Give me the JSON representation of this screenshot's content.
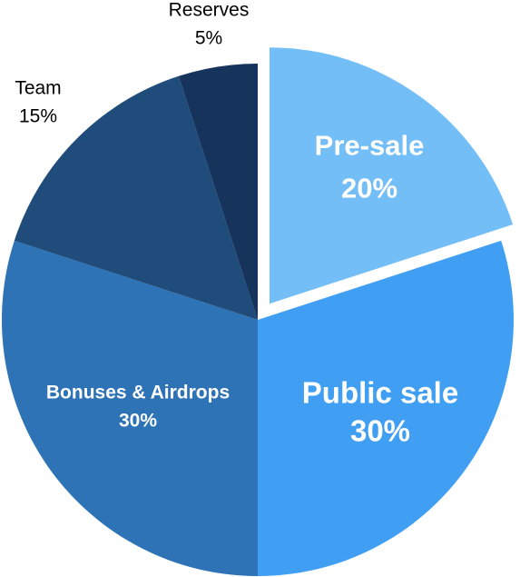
{
  "chart_data": {
    "type": "pie",
    "slices": [
      {
        "label": "Pre-sale",
        "value": 20,
        "value_label": "20%",
        "color": "#74bef8",
        "exploded": true,
        "label_style": "inside-large"
      },
      {
        "label": "Public sale",
        "value": 30,
        "value_label": "30%",
        "color": "#419ff3",
        "exploded": false,
        "label_style": "inside-xlarge"
      },
      {
        "label": "Bonuses & Airdrops",
        "value": 30,
        "value_label": "30%",
        "color": "#2d73b5",
        "exploded": false,
        "label_style": "inside-medium"
      },
      {
        "label": "Team",
        "value": 15,
        "value_label": "15%",
        "color": "#1f4c7b",
        "exploded": false,
        "label_style": "outside"
      },
      {
        "label": "Reserves",
        "value": 5,
        "value_label": "5%",
        "color": "#16345b",
        "exploded": false,
        "label_style": "outside"
      }
    ]
  }
}
